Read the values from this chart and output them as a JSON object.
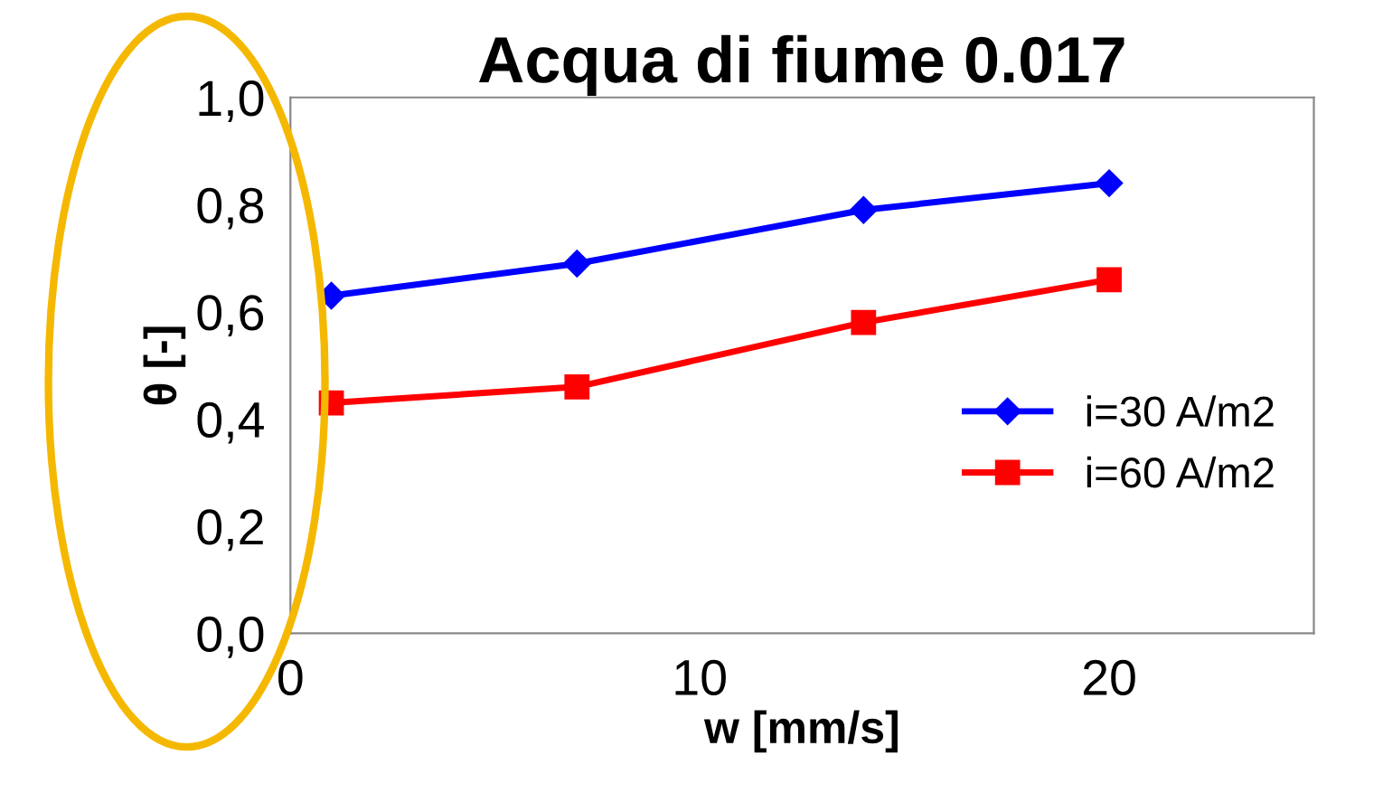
{
  "chart_data": {
    "type": "line",
    "title": "Acqua di fiume 0.017",
    "xlabel": "w [mm/s]",
    "ylabel": "θ [-]",
    "series": [
      {
        "name": "i=30 A/m2",
        "color": "#0000ff",
        "marker": "diamond",
        "x": [
          1,
          7,
          14,
          20
        ],
        "values": [
          0.63,
          0.69,
          0.79,
          0.84
        ]
      },
      {
        "name": "i=60 A/m2",
        "color": "#ff0000",
        "marker": "square",
        "x": [
          1,
          7,
          14,
          20
        ],
        "values": [
          0.43,
          0.46,
          0.58,
          0.66
        ]
      }
    ],
    "xlim": [
      0,
      25
    ],
    "xticks": [
      0,
      10,
      20
    ],
    "ylim": [
      0,
      1
    ],
    "yticks": [
      {
        "value": 0,
        "label": "0,0"
      },
      {
        "value": 0.2,
        "label": "0,2"
      },
      {
        "value": 0.4,
        "label": "0,4"
      },
      {
        "value": 0.6,
        "label": "0,6"
      },
      {
        "value": 0.8,
        "label": "0,8"
      },
      {
        "value": 1,
        "label": "1,0"
      }
    ],
    "grid": false,
    "legend": "right",
    "line_style": "solid"
  }
}
